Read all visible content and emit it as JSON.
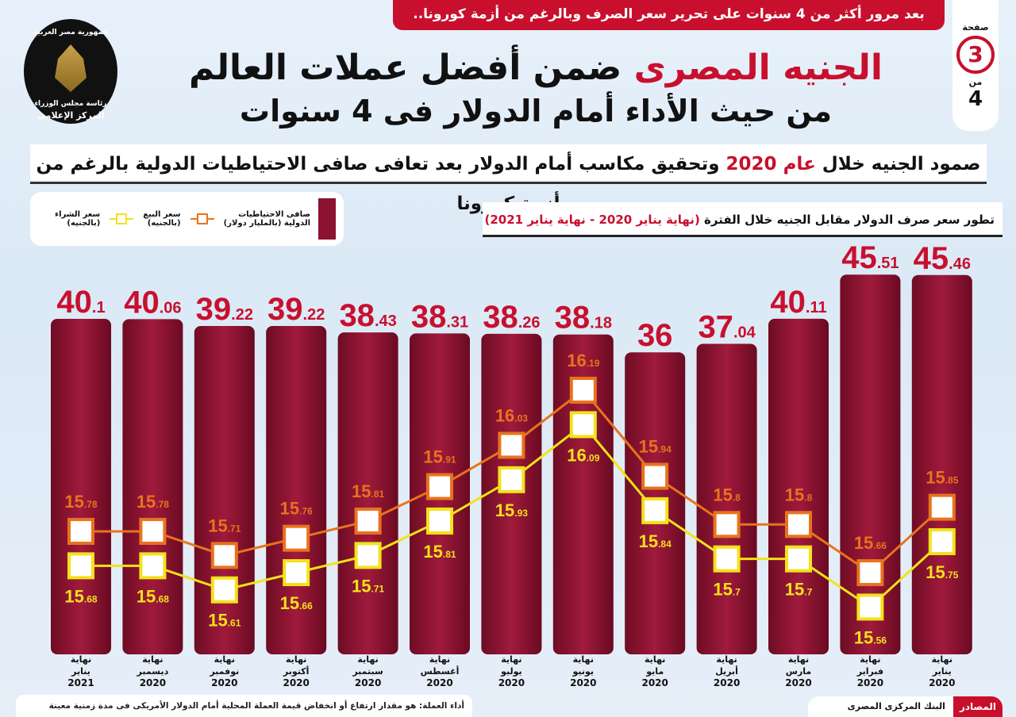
{
  "header": {
    "top_banner": "بعد مرور أكثر من 4 سنوات على تحرير سعر الصرف وبالرغم من أزمة كورونا..",
    "page_label": "صفحة",
    "page_number": "3",
    "page_of": "من",
    "page_total": "4",
    "logo_text_top": "جمهورية مصر العربية",
    "logo_text_mid": "رئاسة مجلس الوزراء",
    "logo_text_bottom": "المركز الإعلامى",
    "title_red": "الجنيه المصرى",
    "title_rest": "ضمن أفضل عملات العالم",
    "title_line2": "من حيث الأداء أمام الدولار فى 4 سنوات",
    "subtitle_a": "صمود الجنيه خلال",
    "subtitle_red": "عام 2020",
    "subtitle_b": "وتحقيق مكاسب أمام الدولار بعد تعافى صافى الاحتياطيات الدولية بالرغم من أزمة كورونا"
  },
  "chart_data": {
    "type": "bar+line",
    "title": "تطور سعر صرف الدولار مقابل الجنيه خلال الفترة",
    "title_period": "(نهاية يناير 2020 - نهاية يناير 2021)",
    "categories": [
      [
        "نهاية",
        "يناير",
        "2021"
      ],
      [
        "نهاية",
        "ديسمبر",
        "2020"
      ],
      [
        "نهاية",
        "نوفمبر",
        "2020"
      ],
      [
        "نهاية",
        "أكتوبر",
        "2020"
      ],
      [
        "نهاية",
        "سبتمبر",
        "2020"
      ],
      [
        "نهاية",
        "أغسطس",
        "2020"
      ],
      [
        "نهاية",
        "يوليو",
        "2020"
      ],
      [
        "نهاية",
        "يونيو",
        "2020"
      ],
      [
        "نهاية",
        "مايو",
        "2020"
      ],
      [
        "نهاية",
        "أبريل",
        "2020"
      ],
      [
        "نهاية",
        "مارس",
        "2020"
      ],
      [
        "نهاية",
        "فبراير",
        "2020"
      ],
      [
        "نهاية",
        "يناير",
        "2020"
      ]
    ],
    "series": [
      {
        "name": "صافى الاحتياطيات الدولية (بالمليار دولار)",
        "type": "bar",
        "color": "#8b1230",
        "values": [
          "40.1",
          "40.06",
          "39.22",
          "39.22",
          "38.43",
          "38.31",
          "38.26",
          "38.18",
          "36",
          "37.04",
          "40.11",
          "45.51",
          "45.46"
        ]
      },
      {
        "name": "سعر البيع (بالجنيه)",
        "type": "line",
        "color": "#e8731c",
        "values": [
          "15.78",
          "15.78",
          "15.71",
          "15.76",
          "15.81",
          "15.91",
          "16.03",
          "16.19",
          "15.94",
          "15.8",
          "15.8",
          "15.66",
          "15.85"
        ]
      },
      {
        "name": "سعر الشراء (بالجنيه)",
        "type": "line",
        "color": "#f2e21a",
        "values": [
          "15.68",
          "15.68",
          "15.61",
          "15.66",
          "15.71",
          "15.81",
          "15.93",
          "16.09",
          "15.84",
          "15.7",
          "15.7",
          "15.56",
          "15.75"
        ]
      }
    ],
    "legend": {
      "reserves_1": "صافى الاحتياطيات",
      "reserves_2": "الدولية (بالمليار دولار)",
      "sell_1": "سعر البيع",
      "sell_2": "(بالجنيه)",
      "buy_1": "سعر الشراء",
      "buy_2": "(بالجنيه)"
    },
    "legend_position": "top-left"
  },
  "footer": {
    "note": "أداء العملة: هو مقدار ارتفاع أو انخفاض قيمة العملة المحلية أمام الدولار الأمريكى فى مدة زمنية معينة",
    "source_label": "المصادر",
    "source_value": "البنك المركزى المصرى"
  }
}
